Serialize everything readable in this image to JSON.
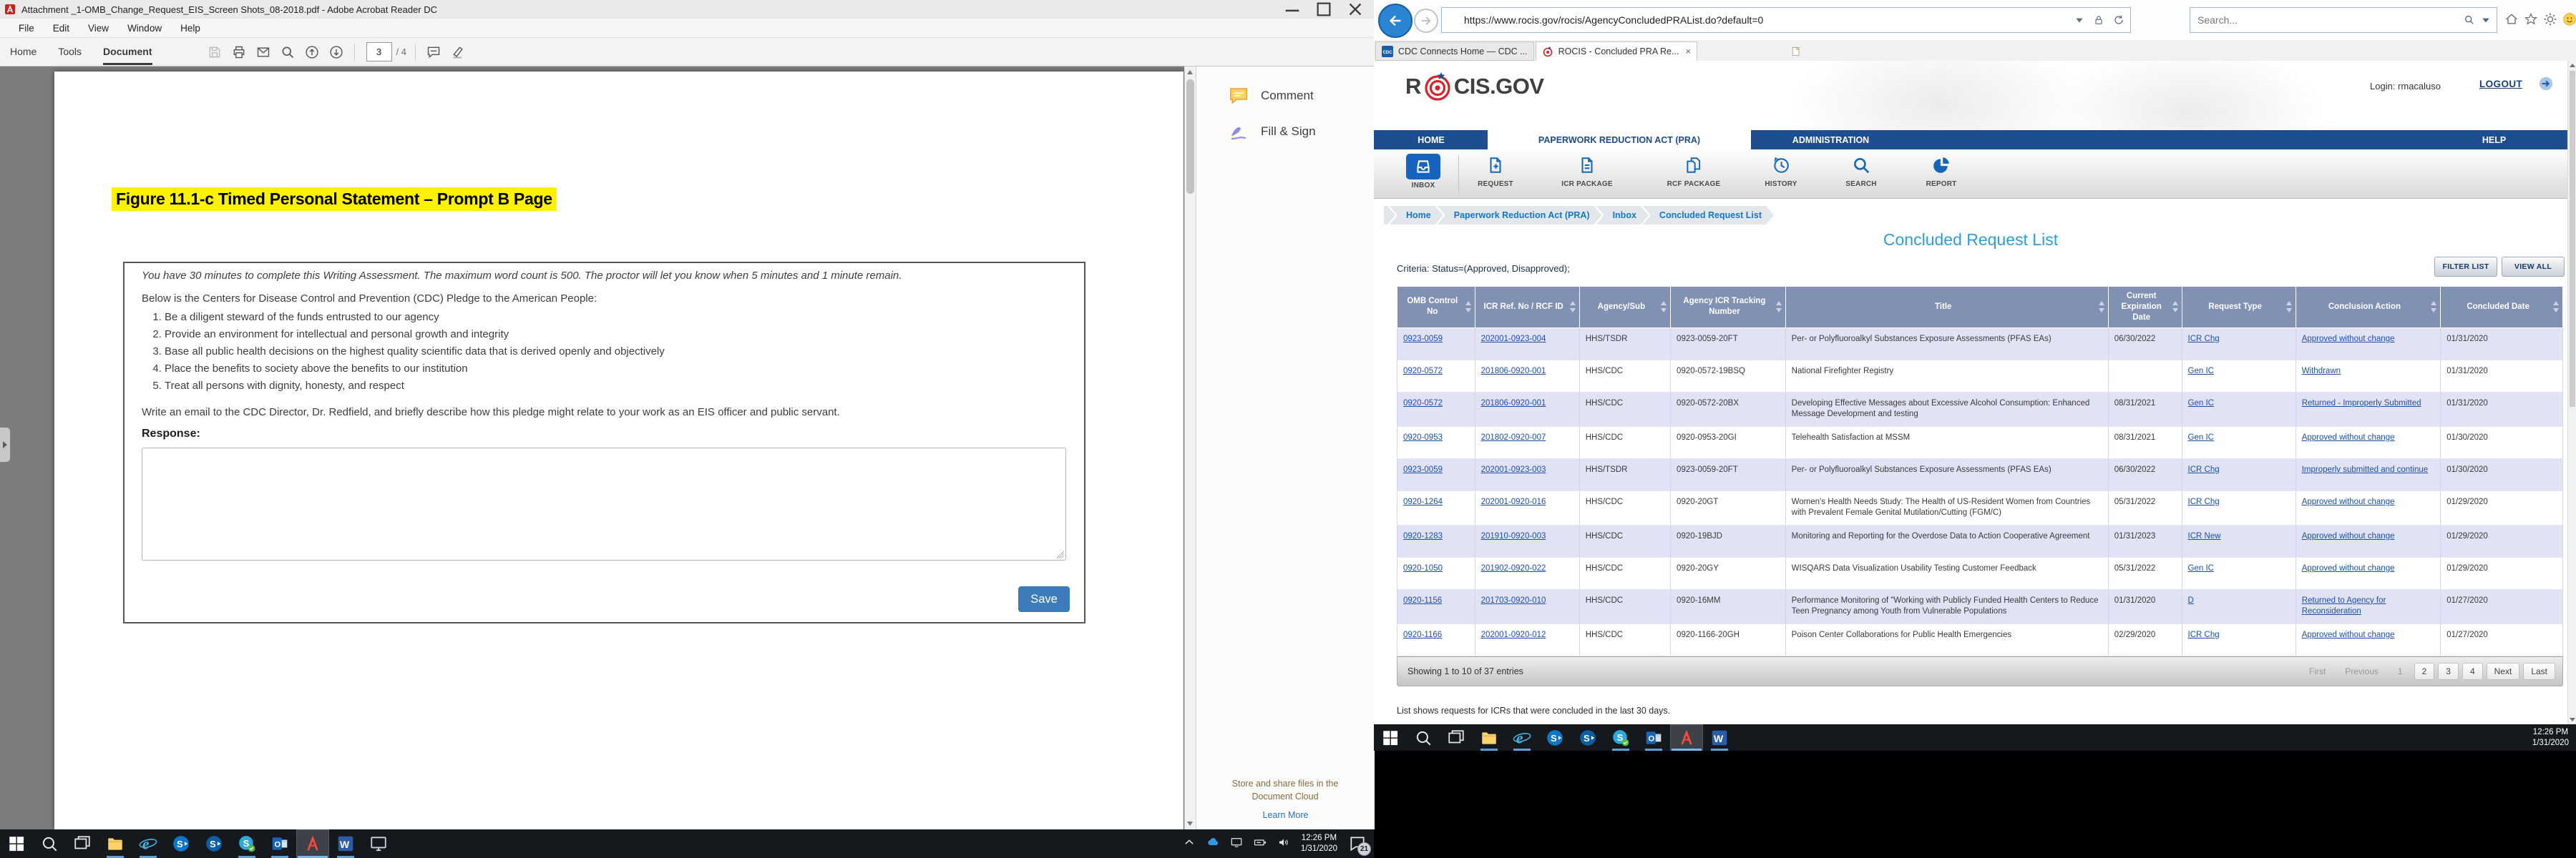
{
  "left_monitor": {
    "acrobat": {
      "title": "Attachment _1-OMB_Change_Request_EIS_Screen Shots_08-2018.pdf - Adobe Acrobat Reader DC",
      "menus": [
        "File",
        "Edit",
        "View",
        "Window",
        "Help"
      ],
      "tabs": [
        "Home",
        "Tools",
        "Document"
      ],
      "active_tab": "Document",
      "toolbar_icons": [
        "save",
        "print",
        "email",
        "search",
        "page-up",
        "page-down"
      ],
      "toolbar_icons2": [
        "comment",
        "highlighter"
      ],
      "page_field": {
        "value": "3",
        "total": "/ 4"
      },
      "pdf": {
        "heading": "Figure 11.1-c Timed Personal Statement – Prompt B Page",
        "intro": "You have 30 minutes to complete this Writing Assessment. The maximum word count is 500. The proctor will let you know when 5 minutes and 1 minute remain.",
        "pledge_intro": "Below is the Centers for Disease Control and Prevention (CDC) Pledge to the American People:",
        "pledge_items": [
          "Be a diligent steward of the funds entrusted to our agency",
          "Provide an environment for intellectual and personal growth and integrity",
          "Base all public health decisions on the highest quality scientific data that is derived openly and objectively",
          "Place the benefits to society above the benefits to our institution",
          "Treat all persons with dignity, honesty, and respect"
        ],
        "email_instruction": "Write an email to the CDC Director, Dr. Redfield, and briefly describe how this pledge might relate to your work as an EIS officer and public servant.",
        "response_label": "Response:",
        "save_label": "Save"
      },
      "panel": {
        "items": [
          {
            "label": "Comment",
            "icon": "comment-panel"
          },
          {
            "label": "Fill & Sign",
            "icon": "fill-sign"
          }
        ],
        "promo": "Store and share files in the Document Cloud",
        "learn_more": "Learn More"
      }
    },
    "taskbar": {
      "icons": [
        {
          "icon": "start"
        },
        {
          "icon": "search-task"
        },
        {
          "icon": "task-view"
        },
        {
          "icon": "file-explorer",
          "open": true
        },
        {
          "icon": "ie",
          "open": true
        },
        {
          "icon": "skype-business-1"
        },
        {
          "icon": "skype-business-2"
        },
        {
          "icon": "skype",
          "open": true
        },
        {
          "icon": "outlook",
          "open": true
        },
        {
          "icon": "acrobat",
          "open": true,
          "active": true
        },
        {
          "icon": "word",
          "open": true
        },
        {
          "icon": "remote-desktop"
        }
      ],
      "tray_icons": [
        "chevron-up",
        "onedrive",
        "monitor",
        "battery",
        "volume"
      ],
      "clock": {
        "time": "12:26 PM",
        "date": "1/31/2020"
      },
      "notification_badge": "21"
    }
  },
  "right_monitor": {
    "browser": {
      "url": "https://www.rocis.gov/rocis/AgencyConcludedPRAList.do?default=0",
      "search_placeholder": "Search...",
      "tabs": [
        {
          "label": "CDC Connects Home — CDC ...",
          "icon": "cdc-favicon",
          "active": false
        },
        {
          "label": "ROCIS - Concluded PRA Re...",
          "icon": "rocis-favicon",
          "active": true
        }
      ]
    },
    "rocis": {
      "logo_left": "R",
      "logo_right": "CIS.GOV",
      "login_label": "Login: rmacaluso",
      "logout_label": "LOGOUT",
      "nav": [
        "HOME",
        "PAPERWORK REDUCTION ACT (PRA)",
        "ADMINISTRATION",
        "HELP"
      ],
      "active_nav": "PAPERWORK REDUCTION ACT (PRA)",
      "toolbar_icons": [
        {
          "label": "INBOX",
          "icon": "inbox",
          "active": true
        },
        {
          "label": "REQUEST",
          "icon": "request"
        },
        {
          "label": "ICR PACKAGE",
          "icon": "icr-package"
        },
        {
          "label": "RCF PACKAGE",
          "icon": "rcf-package"
        },
        {
          "label": "HISTORY",
          "icon": "history"
        },
        {
          "label": "SEARCH",
          "icon": "search-blue"
        },
        {
          "label": "REPORT",
          "icon": "report"
        }
      ],
      "breadcrumb": [
        "Home",
        "Paperwork Reduction Act (PRA)",
        "Inbox",
        "Concluded Request List"
      ],
      "page_title": "Concluded Request List",
      "criteria": "Criteria: Status=(Approved, Disapproved);",
      "filter_button": "FILTER LIST",
      "view_all_button": "VIEW ALL",
      "table": {
        "columns": [
          "OMB Control No",
          "ICR Ref. No / RCF ID",
          "Agency/Sub",
          "Agency ICR Tracking Number",
          "Title",
          "Current Expiration Date",
          "Request Type",
          "Conclusion Action",
          "Concluded Date"
        ],
        "rows": [
          {
            "omb": "0923-0059",
            "icr_ref": "202001-0923-004",
            "agency": "HHS/TSDR",
            "tracking": "0923-0059-20FT",
            "title": "Per- or Polyfluoroalkyl Substances Exposure Assessments (PFAS EAs)",
            "expiration": "06/30/2022",
            "request_type": "ICR Chg",
            "conclusion": "Approved without change",
            "concluded": "01/31/2020"
          },
          {
            "omb": "0920-0572",
            "icr_ref": "201806-0920-001",
            "agency": "HHS/CDC",
            "tracking": "0920-0572-19BSQ",
            "title": "National Firefighter Registry",
            "expiration": "",
            "request_type": "Gen IC",
            "conclusion": "Withdrawn",
            "concluded": "01/31/2020"
          },
          {
            "omb": "0920-0572",
            "icr_ref": "201806-0920-001",
            "agency": "HHS/CDC",
            "tracking": "0920-0572-20BX",
            "title": "Developing Effective Messages about Excessive Alcohol Consumption: Enhanced Message Development and testing",
            "expiration": "08/31/2021",
            "request_type": "Gen IC",
            "conclusion": "Returned - Improperly Submitted",
            "concluded": "01/31/2020"
          },
          {
            "omb": "0920-0953",
            "icr_ref": "201802-0920-007",
            "agency": "HHS/CDC",
            "tracking": "0920-0953-20GI",
            "title": "Telehealth Satisfaction at MSSM",
            "expiration": "08/31/2021",
            "request_type": "Gen IC",
            "conclusion": "Approved without change",
            "concluded": "01/30/2020"
          },
          {
            "omb": "0923-0059",
            "icr_ref": "202001-0923-003",
            "agency": "HHS/TSDR",
            "tracking": "0923-0059-20FT",
            "title": "Per- or Polyfluoroalkyl Substances Exposure Assessments (PFAS EAs)",
            "expiration": "06/30/2022",
            "request_type": "ICR Chg",
            "conclusion": "Improperly submitted and continue",
            "concluded": "01/30/2020"
          },
          {
            "omb": "0920-1264",
            "icr_ref": "202001-0920-016",
            "agency": "HHS/CDC",
            "tracking": "0920-20GT",
            "title": "Women's Health Needs Study: The Health of US-Resident Women from Countries with Prevalent Female Genital Mutilation/Cutting (FGM/C)",
            "expiration": "05/31/2022",
            "request_type": "ICR Chg",
            "conclusion": "Approved without change",
            "concluded": "01/29/2020"
          },
          {
            "omb": "0920-1283",
            "icr_ref": "201910-0920-003",
            "agency": "HHS/CDC",
            "tracking": "0920-19BJD",
            "title": "Monitoring and Reporting for the Overdose Data to Action Cooperative Agreement",
            "expiration": "01/31/2023",
            "request_type": "ICR New",
            "conclusion": "Approved without change",
            "concluded": "01/29/2020"
          },
          {
            "omb": "0920-1050",
            "icr_ref": "201902-0920-022",
            "agency": "HHS/CDC",
            "tracking": "0920-20GY",
            "title": "WISQARS Data Visualization Usability Testing Customer Feedback",
            "expiration": "05/31/2022",
            "request_type": "Gen IC",
            "conclusion": "Approved without change",
            "concluded": "01/29/2020"
          },
          {
            "omb": "0920-1156",
            "icr_ref": "201703-0920-010",
            "agency": "HHS/CDC",
            "tracking": "0920-16MM",
            "title": "Performance Monitoring of \"Working with Publicly Funded Health Centers to Reduce Teen Pregnancy among Youth from Vulnerable Populations",
            "expiration": "01/31/2020",
            "request_type": "D",
            "conclusion": "Returned to Agency for Reconsideration",
            "concluded": "01/27/2020"
          },
          {
            "omb": "0920-1166",
            "icr_ref": "202001-0920-012",
            "agency": "HHS/CDC",
            "tracking": "0920-1166-20GH",
            "title": "Poison Center Collaborations for Public Health Emergencies",
            "expiration": "02/29/2020",
            "request_type": "ICR Chg",
            "conclusion": "Approved without change",
            "concluded": "01/27/2020"
          }
        ]
      },
      "table_footer": {
        "showing": "Showing 1 to 10 of 37 entries",
        "pagination": [
          {
            "label": "First",
            "disabled": true
          },
          {
            "label": "Previous",
            "disabled": true
          },
          {
            "label": "1",
            "disabled": true
          },
          {
            "label": "2"
          },
          {
            "label": "3"
          },
          {
            "label": "4"
          },
          {
            "label": "Next"
          },
          {
            "label": "Last"
          }
        ]
      },
      "note": "List shows requests for ICRs that were concluded in the last 30 days."
    },
    "taskbar": {
      "icons": [
        {
          "icon": "start"
        },
        {
          "icon": "search-task"
        },
        {
          "icon": "task-view"
        },
        {
          "icon": "file-explorer",
          "open": true
        },
        {
          "icon": "ie",
          "open": true
        },
        {
          "icon": "skype-business-1"
        },
        {
          "icon": "skype-business-2"
        },
        {
          "icon": "skype",
          "open": true
        },
        {
          "icon": "outlook",
          "open": true
        },
        {
          "icon": "acrobat",
          "open": true,
          "active": true
        },
        {
          "icon": "word",
          "open": true
        }
      ],
      "clock": {
        "time": "12:26 PM",
        "date": "1/31/2020"
      }
    }
  },
  "colors": {
    "highlight_yellow": "#fff200",
    "pdf_save_blue": "#3c7cba",
    "rocis_nav_blue": "#1e4e8f",
    "rocis_title_blue": "#2f9ed8",
    "table_header": "#8191b3",
    "table_row_alt": "#e1e3f5",
    "link_blue": "#1d4fa8",
    "taskbar_dark": "#15181d"
  }
}
